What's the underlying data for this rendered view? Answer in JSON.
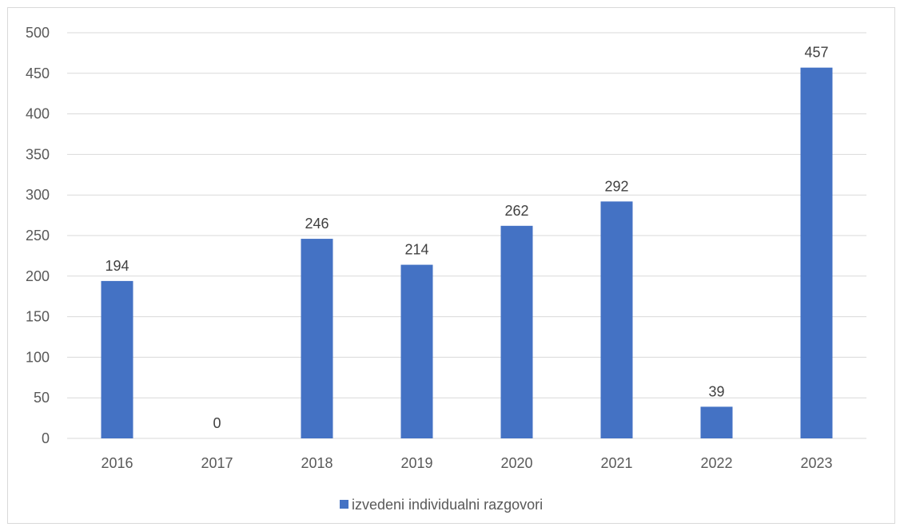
{
  "chart_data": {
    "type": "bar",
    "categories": [
      "2016",
      "2017",
      "2018",
      "2019",
      "2020",
      "2021",
      "2022",
      "2023"
    ],
    "series": [
      {
        "name": "izvedeni individualni razgovori",
        "values": [
          194,
          0,
          246,
          214,
          262,
          292,
          39,
          457
        ],
        "color": "#4472c4"
      }
    ],
    "ylim": [
      0,
      500
    ],
    "yticks": [
      0,
      50,
      100,
      150,
      200,
      250,
      300,
      350,
      400,
      450,
      500
    ],
    "grid": true,
    "data_labels": true,
    "legend_position": "bottom",
    "gridline_color": "#d9d9d9"
  }
}
